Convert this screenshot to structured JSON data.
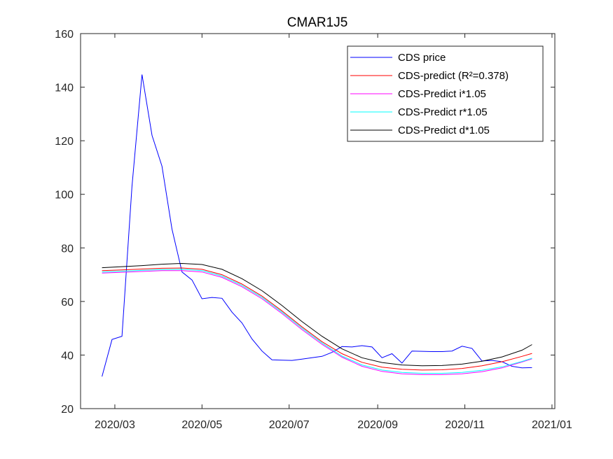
{
  "chart_data": {
    "type": "line",
    "title": "CMAR1J5",
    "xlabel": "",
    "ylabel": "",
    "ylim": [
      20,
      160
    ],
    "xlim": [
      "2020-02-06",
      "2021-01-03"
    ],
    "y_ticks": [
      20,
      40,
      60,
      80,
      100,
      120,
      140,
      160
    ],
    "x_ticks": [
      {
        "date": "2020-03-01",
        "label": "2020/03"
      },
      {
        "date": "2020-05-01",
        "label": "2020/05"
      },
      {
        "date": "2020-07-01",
        "label": "2020/07"
      },
      {
        "date": "2020-09-01",
        "label": "2020/09"
      },
      {
        "date": "2020-11-01",
        "label": "2020/11"
      },
      {
        "date": "2021-01-01",
        "label": "2021/01"
      }
    ],
    "grid": false,
    "legend_position": "top-right",
    "series": [
      {
        "name": "CDS price",
        "color": "#0000ff",
        "x": [
          "2020-02-21",
          "2020-02-28",
          "2020-03-06",
          "2020-03-13",
          "2020-03-20",
          "2020-03-27",
          "2020-04-03",
          "2020-04-10",
          "2020-04-17",
          "2020-04-24",
          "2020-05-01",
          "2020-05-08",
          "2020-05-15",
          "2020-05-22",
          "2020-05-29",
          "2020-06-05",
          "2020-06-12",
          "2020-06-19",
          "2020-06-26",
          "2020-07-03",
          "2020-07-10",
          "2020-07-17",
          "2020-07-24",
          "2020-07-31",
          "2020-08-07",
          "2020-08-14",
          "2020-08-21",
          "2020-08-28",
          "2020-09-04",
          "2020-09-11",
          "2020-09-18",
          "2020-09-25",
          "2020-10-02",
          "2020-10-09",
          "2020-10-16",
          "2020-10-23",
          "2020-10-30",
          "2020-11-06",
          "2020-11-13",
          "2020-11-20",
          "2020-11-27",
          "2020-12-04",
          "2020-12-11",
          "2020-12-18"
        ],
        "values": [
          32.0,
          45.8,
          47.0,
          103.0,
          144.7,
          122.0,
          110.5,
          87.0,
          71.0,
          68.0,
          61.0,
          61.5,
          61.2,
          56.0,
          52.0,
          46.0,
          41.5,
          38.2,
          38.1,
          38.0,
          38.5,
          39.0,
          39.5,
          41.0,
          43.2,
          43.0,
          43.5,
          43.0,
          39.0,
          40.5,
          37.0,
          41.5,
          41.4,
          41.3,
          41.3,
          41.5,
          43.3,
          42.5,
          37.8,
          38.0,
          37.5,
          35.8,
          35.2,
          35.3
        ]
      },
      {
        "name": "CDS-predict (R²=0.378)",
        "color": "#ff0000",
        "x": [
          "2020-02-21",
          "2020-03-06",
          "2020-03-20",
          "2020-04-03",
          "2020-04-17",
          "2020-05-01",
          "2020-05-15",
          "2020-05-29",
          "2020-06-12",
          "2020-06-26",
          "2020-07-10",
          "2020-07-24",
          "2020-08-07",
          "2020-08-21",
          "2020-09-04",
          "2020-09-18",
          "2020-10-02",
          "2020-10-16",
          "2020-10-30",
          "2020-11-13",
          "2020-11-27",
          "2020-12-11",
          "2020-12-18"
        ],
        "values": [
          71.5,
          71.8,
          72.1,
          72.4,
          72.5,
          72.0,
          70.0,
          66.5,
          62.0,
          56.5,
          50.5,
          45.0,
          40.5,
          37.3,
          35.5,
          34.7,
          34.4,
          34.5,
          35.0,
          36.0,
          37.5,
          39.5,
          40.6
        ]
      },
      {
        "name": "CDS-Predict i*1.05",
        "color": "#ff00ff",
        "x": [
          "2020-02-21",
          "2020-03-06",
          "2020-03-20",
          "2020-04-03",
          "2020-04-17",
          "2020-05-01",
          "2020-05-15",
          "2020-05-29",
          "2020-06-12",
          "2020-06-26",
          "2020-07-10",
          "2020-07-24",
          "2020-08-07",
          "2020-08-21",
          "2020-09-04",
          "2020-09-18",
          "2020-10-02",
          "2020-10-16",
          "2020-10-30",
          "2020-11-13",
          "2020-11-27",
          "2020-12-11",
          "2020-12-18"
        ],
        "values": [
          70.6,
          70.9,
          71.2,
          71.5,
          71.5,
          71.0,
          69.0,
          65.5,
          61.0,
          55.5,
          49.5,
          44.0,
          39.2,
          35.8,
          33.9,
          33.0,
          32.7,
          32.7,
          33.0,
          33.8,
          35.2,
          37.4,
          38.6
        ]
      },
      {
        "name": "CDS-Predict r*1.05",
        "color": "#00ffff",
        "x": [
          "2020-02-21",
          "2020-03-06",
          "2020-03-20",
          "2020-04-03",
          "2020-04-17",
          "2020-05-01",
          "2020-05-15",
          "2020-05-29",
          "2020-06-12",
          "2020-06-26",
          "2020-07-10",
          "2020-07-24",
          "2020-08-07",
          "2020-08-21",
          "2020-09-04",
          "2020-09-18",
          "2020-10-02",
          "2020-10-16",
          "2020-10-30",
          "2020-11-13",
          "2020-11-27",
          "2020-12-11",
          "2020-12-18"
        ],
        "values": [
          71.0,
          71.3,
          71.6,
          71.9,
          72.0,
          71.5,
          69.5,
          66.0,
          61.5,
          56.0,
          50.0,
          44.5,
          39.6,
          36.3,
          34.4,
          33.5,
          33.2,
          33.2,
          33.5,
          34.3,
          35.6,
          37.6,
          38.8
        ]
      },
      {
        "name": "CDS-Predict d*1.05",
        "color": "#000000",
        "x": [
          "2020-02-21",
          "2020-03-06",
          "2020-03-20",
          "2020-04-03",
          "2020-04-17",
          "2020-05-01",
          "2020-05-15",
          "2020-05-29",
          "2020-06-12",
          "2020-06-26",
          "2020-07-10",
          "2020-07-24",
          "2020-08-07",
          "2020-08-21",
          "2020-09-04",
          "2020-09-18",
          "2020-10-02",
          "2020-10-16",
          "2020-10-30",
          "2020-11-13",
          "2020-11-27",
          "2020-12-11",
          "2020-12-18"
        ],
        "values": [
          72.6,
          73.0,
          73.4,
          73.9,
          74.2,
          73.8,
          72.0,
          68.5,
          64.0,
          58.5,
          52.5,
          47.0,
          42.3,
          39.0,
          37.2,
          36.3,
          36.0,
          36.1,
          36.6,
          37.7,
          39.3,
          41.8,
          43.9
        ]
      }
    ]
  }
}
